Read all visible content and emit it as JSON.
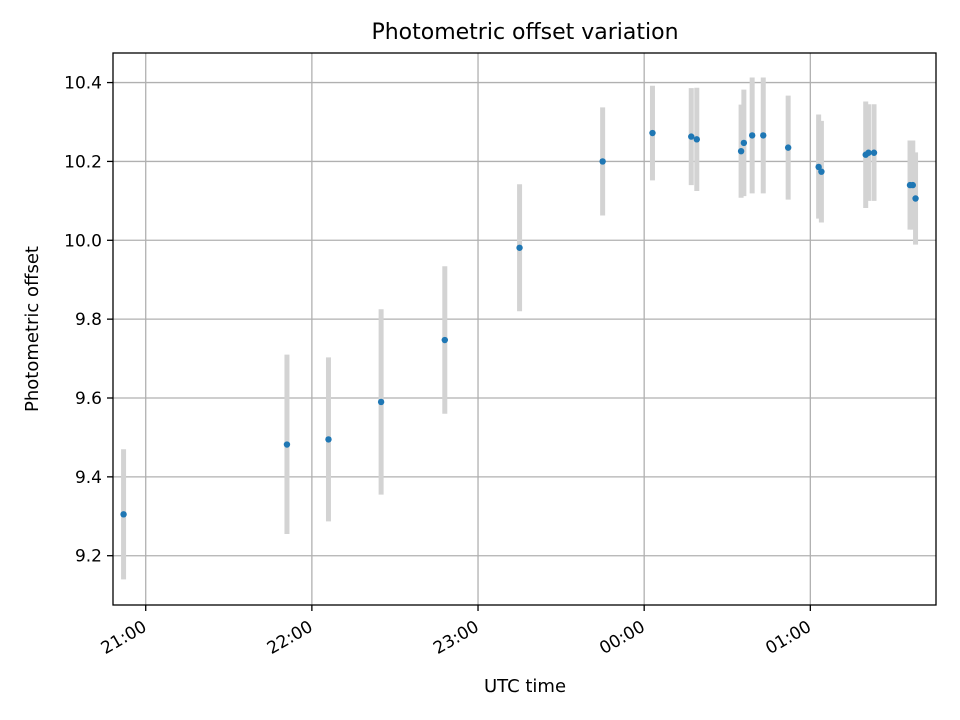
{
  "chart_data": {
    "type": "scatter",
    "title": "Photometric offset variation",
    "xlabel": "UTC time",
    "ylabel": "Photometric offset",
    "x_unit": "UTC time (HH:MM)",
    "xlim": [
      "20:48",
      "23:58+01:45"
    ],
    "x_ticks": [
      "21:00",
      "22:00",
      "23:00",
      "00:00",
      "01:00"
    ],
    "y_ticks": [
      "9.2",
      "9.4",
      "9.6",
      "9.8",
      "10.0",
      "10.2",
      "10.4"
    ],
    "ylim": [
      9.075,
      10.475
    ],
    "grid": true,
    "colors": {
      "point": "#1f77b4",
      "errorbar": "#d3d3d3",
      "grid": "#b0b0b0"
    },
    "series": [
      {
        "points": [
          {
            "x": "20:52",
            "y": 9.305,
            "ylow": 9.14,
            "yhigh": 9.47
          },
          {
            "x": "21:51",
            "y": 9.482,
            "ylow": 9.255,
            "yhigh": 9.71
          },
          {
            "x": "22:06",
            "y": 9.495,
            "ylow": 9.287,
            "yhigh": 9.703
          },
          {
            "x": "22:25",
            "y": 9.59,
            "ylow": 9.355,
            "yhigh": 9.825
          },
          {
            "x": "22:48",
            "y": 9.747,
            "ylow": 9.56,
            "yhigh": 9.934
          },
          {
            "x": "23:15",
            "y": 9.981,
            "ylow": 9.82,
            "yhigh": 10.142
          },
          {
            "x": "23:45",
            "y": 10.2,
            "ylow": 10.063,
            "yhigh": 10.337
          },
          {
            "x": "00:03",
            "y": 10.272,
            "ylow": 10.152,
            "yhigh": 10.392
          },
          {
            "x": "00:17",
            "y": 10.263,
            "ylow": 10.14,
            "yhigh": 10.386
          },
          {
            "x": "00:19",
            "y": 10.256,
            "ylow": 10.125,
            "yhigh": 10.387
          },
          {
            "x": "00:35",
            "y": 10.226,
            "ylow": 10.108,
            "yhigh": 10.344
          },
          {
            "x": "00:36",
            "y": 10.247,
            "ylow": 10.112,
            "yhigh": 10.382
          },
          {
            "x": "00:39",
            "y": 10.266,
            "ylow": 10.119,
            "yhigh": 10.413
          },
          {
            "x": "00:43",
            "y": 10.266,
            "ylow": 10.119,
            "yhigh": 10.413
          },
          {
            "x": "00:52",
            "y": 10.235,
            "ylow": 10.103,
            "yhigh": 10.367
          },
          {
            "x": "01:03",
            "y": 10.186,
            "ylow": 10.055,
            "yhigh": 10.319
          },
          {
            "x": "01:04",
            "y": 10.174,
            "ylow": 10.045,
            "yhigh": 10.303
          },
          {
            "x": "01:20",
            "y": 10.217,
            "ylow": 10.082,
            "yhigh": 10.352
          },
          {
            "x": "01:21",
            "y": 10.222,
            "ylow": 10.1,
            "yhigh": 10.345
          },
          {
            "x": "01:23",
            "y": 10.222,
            "ylow": 10.1,
            "yhigh": 10.345
          },
          {
            "x": "01:36",
            "y": 10.14,
            "ylow": 10.027,
            "yhigh": 10.253
          },
          {
            "x": "01:37",
            "y": 10.14,
            "ylow": 10.027,
            "yhigh": 10.253
          },
          {
            "x": "01:38",
            "y": 10.106,
            "ylow": 9.989,
            "yhigh": 10.223
          }
        ]
      }
    ]
  }
}
